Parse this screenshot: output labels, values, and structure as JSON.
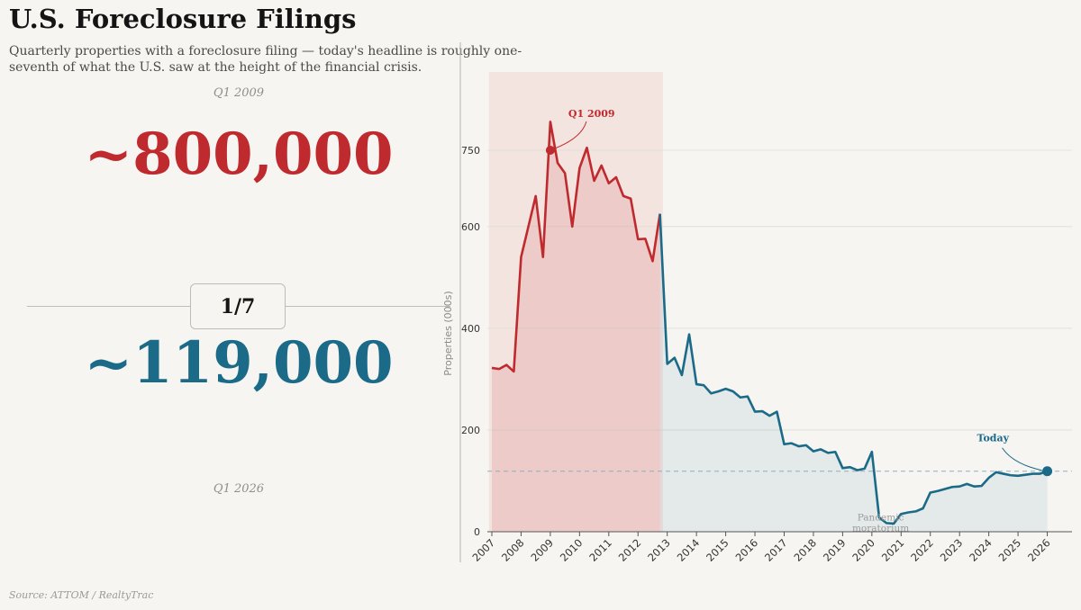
{
  "title": "U.S. Foreclosure Filings",
  "subtitle": "Quarterly properties with a foreclosure filing — today's headline is roughly one-seventh of what the U.S. saw at the height of the financial crisis.",
  "headline": {
    "then_period": "Q1 2009",
    "then_value": "~800,000",
    "ratio": "1/7",
    "now_value": "~119,000",
    "now_period": "Q1 2026"
  },
  "source": "Source: ATTOM / RealtyTrac",
  "colors": {
    "crisis": "#bf2a2e",
    "recent": "#1a6a88",
    "crisis_band": "#f2e1dd",
    "background": "#f6f5f1"
  },
  "chart_data": {
    "type": "line",
    "ylabel": "Properties (000s)",
    "xlabel": "",
    "ylim": [
      0,
      900
    ],
    "yticks": [
      0,
      200,
      400,
      600,
      750
    ],
    "xlim": [
      2007,
      2026.5
    ],
    "xticks": [
      "2007",
      "2008",
      "2009",
      "2010",
      "2011",
      "2012",
      "2013",
      "2014",
      "2015",
      "2016",
      "2017",
      "2018",
      "2019",
      "2020",
      "2021",
      "2022",
      "2023",
      "2024",
      "2025",
      "2026"
    ],
    "grid": "horizontal",
    "shaded_period": {
      "x_start": 2006.9,
      "x_end": 2012.85
    },
    "reference_line_y": 119,
    "series": [
      {
        "color": "#bf2a2e",
        "x": [
          2007.0,
          2007.25,
          2007.5,
          2007.75,
          2008.0,
          2008.25,
          2008.5,
          2008.75,
          2009.0,
          2009.25,
          2009.5,
          2009.75,
          2010.0,
          2010.25,
          2010.5,
          2010.75,
          2011.0,
          2011.25,
          2011.5,
          2011.75,
          2012.0,
          2012.25,
          2012.5,
          2012.75
        ],
        "y": [
          322,
          320,
          328,
          315,
          540,
          600,
          660,
          540,
          806,
          725,
          705,
          600,
          715,
          755,
          690,
          720,
          685,
          697,
          660,
          655,
          575,
          576,
          532,
          625
        ]
      },
      {
        "color": "#1a6a88",
        "x": [
          2012.75,
          2013.0,
          2013.25,
          2013.5,
          2013.75,
          2014.0,
          2014.25,
          2014.5,
          2014.75,
          2015.0,
          2015.25,
          2015.5,
          2015.75,
          2016.0,
          2016.25,
          2016.5,
          2016.75,
          2017.0,
          2017.25,
          2017.5,
          2017.75,
          2018.0,
          2018.25,
          2018.5,
          2018.75,
          2019.0,
          2019.25,
          2019.5,
          2019.75,
          2020.0,
          2020.25,
          2020.5,
          2020.75,
          2021.0,
          2021.25,
          2021.5,
          2021.75,
          2022.0,
          2022.25,
          2022.5,
          2022.75,
          2023.0,
          2023.25,
          2023.5,
          2023.75,
          2024.0,
          2024.25,
          2024.5,
          2024.75,
          2025.0,
          2025.25,
          2025.5,
          2025.75,
          2026.0
        ],
        "y": [
          625,
          330,
          342,
          308,
          388,
          290,
          288,
          272,
          276,
          281,
          276,
          264,
          266,
          236,
          237,
          228,
          236,
          172,
          174,
          168,
          170,
          158,
          162,
          155,
          157,
          125,
          127,
          121,
          124,
          157,
          28,
          17,
          16,
          35,
          38,
          40,
          46,
          77,
          80,
          84,
          88,
          89,
          94,
          89,
          90,
          106,
          117,
          114,
          111,
          110,
          112,
          114,
          114,
          119
        ]
      }
    ],
    "annotations": [
      {
        "text": "Q1 2009",
        "x": 2009.0,
        "y": 750,
        "color": "#bf2a2e"
      },
      {
        "text": "Today",
        "x": 2026.0,
        "y": 119,
        "color": "#1a6a88"
      },
      {
        "text": "Pandemic moratorium",
        "x": 2020.3,
        "y": 20,
        "color": "#9a9a9a"
      }
    ]
  }
}
